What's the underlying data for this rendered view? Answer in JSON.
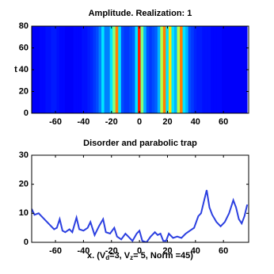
{
  "chart_data": [
    {
      "type": "heatmap",
      "title": "Amplitude. Realization: 1",
      "ylabel": "t",
      "x": [
        -76,
        -74,
        -72,
        -70,
        -68,
        -66,
        -64,
        -62,
        -60,
        -58,
        -56,
        -54,
        -52,
        -50,
        -48,
        -46,
        -44,
        -42,
        -40,
        -38,
        -36,
        -34,
        -32,
        -30,
        -28,
        -26,
        -24,
        -22,
        -20,
        -18,
        -16,
        -14,
        -12,
        -10,
        -8,
        -6,
        -4,
        -2,
        0,
        2,
        4,
        6,
        8,
        10,
        12,
        14,
        16,
        18,
        20,
        22,
        24,
        26,
        28,
        30,
        32,
        34,
        36,
        38,
        40,
        42,
        44,
        46,
        48,
        50,
        52,
        54,
        56,
        58,
        60,
        62,
        64,
        66,
        68,
        70,
        72,
        74,
        76
      ],
      "values": [
        0.12,
        0.12,
        0.12,
        0.13,
        0.13,
        0.14,
        0.14,
        0.15,
        0.15,
        0.14,
        0.13,
        0.13,
        0.12,
        0.12,
        0.12,
        0.13,
        0.13,
        0.13,
        0.14,
        0.14,
        0.15,
        0.16,
        0.18,
        0.2,
        0.25,
        0.35,
        0.25,
        0.25,
        0.35,
        0.5,
        0.75,
        0.35,
        0.2,
        0.18,
        0.18,
        0.2,
        0.22,
        0.35,
        0.85,
        0.5,
        0.3,
        0.2,
        0.18,
        0.2,
        0.22,
        0.3,
        0.55,
        0.75,
        0.35,
        0.65,
        0.35,
        0.3,
        0.55,
        0.75,
        0.35,
        0.3,
        0.2,
        0.18,
        0.16,
        0.15,
        0.15,
        0.14,
        0.14,
        0.14,
        0.13,
        0.13,
        0.13,
        0.13,
        0.12,
        0.12,
        0.12,
        0.12,
        0.12,
        0.12,
        0.12,
        0.12,
        0.12
      ],
      "xlim": [
        -77,
        78
      ],
      "ylim": [
        0,
        80
      ],
      "xticks": [
        -60,
        -40,
        -20,
        0,
        20,
        40,
        60
      ],
      "yticks": [
        0,
        20,
        40,
        60,
        80
      ]
    },
    {
      "type": "line",
      "title": "Disorder and parabolic trap",
      "xlabel_parts": [
        "x.  (V",
        "d",
        "=3, V",
        "z",
        "= 5, Norm =45)"
      ],
      "color": "#2b3fe0",
      "x": [
        -77,
        -75,
        -72,
        -69,
        -66,
        -63,
        -61,
        -59,
        -57,
        -55,
        -53,
        -50,
        -48,
        -45,
        -43,
        -40,
        -37,
        -35,
        -32,
        -29,
        -26,
        -24,
        -21,
        -18,
        -16,
        -13,
        -10,
        -8,
        -5,
        -2,
        0,
        2,
        5,
        8,
        11,
        13,
        15,
        17,
        19,
        21,
        24,
        27,
        30,
        33,
        36,
        39,
        42,
        44,
        46,
        48,
        50,
        52,
        55,
        58,
        61,
        64,
        67,
        69,
        71,
        73,
        75,
        77
      ],
      "values": [
        11.5,
        9.5,
        10,
        8.5,
        7,
        5.5,
        4.5,
        5,
        8,
        4,
        3.5,
        4.5,
        3.5,
        8.5,
        4.5,
        4,
        5,
        7,
        2.5,
        5.5,
        8,
        3.5,
        3,
        5,
        2,
        1,
        3,
        2,
        0.5,
        3,
        4,
        0.5,
        0,
        2,
        3.5,
        2.5,
        3,
        0.5,
        0.5,
        3,
        1.5,
        2,
        1.5,
        3,
        4,
        5,
        9,
        10,
        14,
        18,
        12,
        9.5,
        7,
        5.5,
        7,
        10,
        14.5,
        12,
        8,
        6.5,
        9,
        13
      ],
      "xlim": [
        -77,
        78
      ],
      "ylim": [
        0,
        30
      ],
      "xticks": [
        -60,
        -40,
        -20,
        0,
        20,
        40,
        60
      ],
      "yticks": [
        0,
        10,
        20,
        30
      ]
    }
  ]
}
